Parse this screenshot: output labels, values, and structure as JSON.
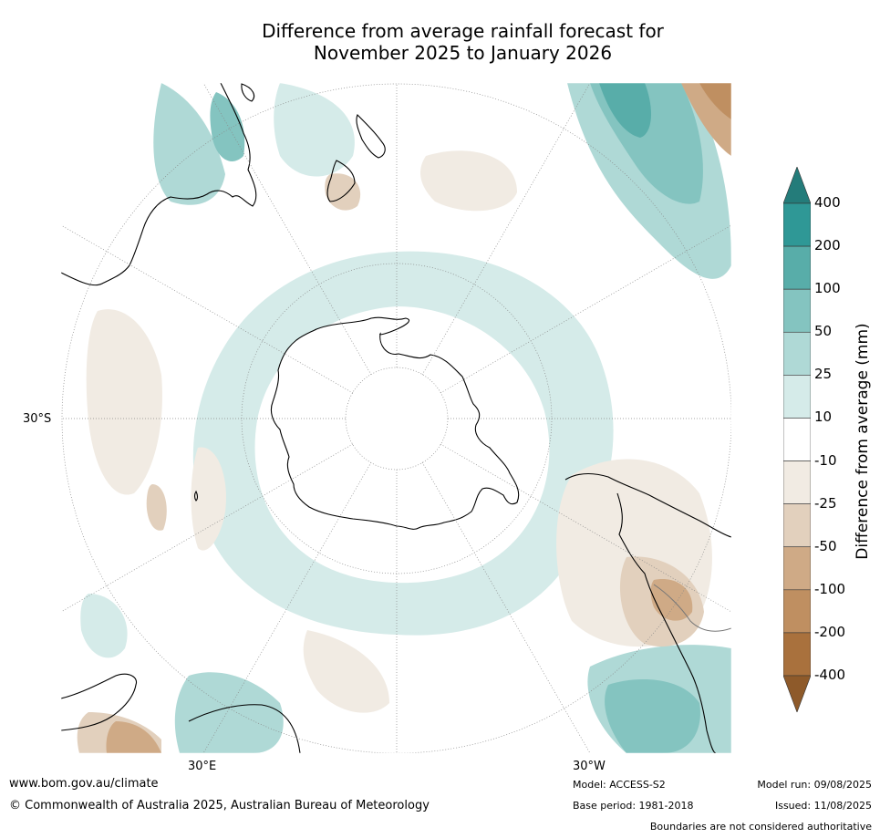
{
  "title": {
    "line1": "Difference from average rainfall forecast for",
    "line2": "November 2025 to January 2026"
  },
  "map": {
    "projection": "south polar stereographic",
    "lat_label_left": "30°S",
    "lon_label_bottom_left": "30°E",
    "lon_label_bottom_right": "30°W",
    "colors": {
      "wet_light": "#d5ebe9",
      "wet_med": "#afd9d6",
      "wet_strong": "#84c4c0",
      "wet_heavy": "#58ada9",
      "dry_light": "#f1ebe3",
      "dry_med": "#e2d0bd",
      "dry_strong": "#cfaa86",
      "dry_heavy": "#bf8f61",
      "coast": "#000000",
      "grid": "#888888"
    }
  },
  "colorbar": {
    "title": "Difference from average (mm)",
    "ticks": [
      "400",
      "200",
      "100",
      "50",
      "25",
      "10",
      "-10",
      "-25",
      "-50",
      "-100",
      "-200",
      "-400"
    ],
    "colors_top_to_bottom": [
      "#2f9896",
      "#58ada9",
      "#84c4c0",
      "#afd9d6",
      "#d5ebe9",
      "#ffffff",
      "#f1ebe3",
      "#e2d0bd",
      "#cfaa86",
      "#bf8f61",
      "#a9713d"
    ],
    "extend_top_color": "#247c7a",
    "extend_bottom_color": "#8e5a2a"
  },
  "footer": {
    "website": "www.bom.gov.au/climate",
    "copyright": "© Commonwealth of Australia 2025, Australian Bureau of Meteorology",
    "model": "Model: ACCESS-S2",
    "base_period": "Base period: 1981-2018",
    "model_run": "Model run: 09/08/2025",
    "issued": "Issued: 11/08/2025",
    "disclaimer": "Boundaries are not considered authoritative"
  }
}
